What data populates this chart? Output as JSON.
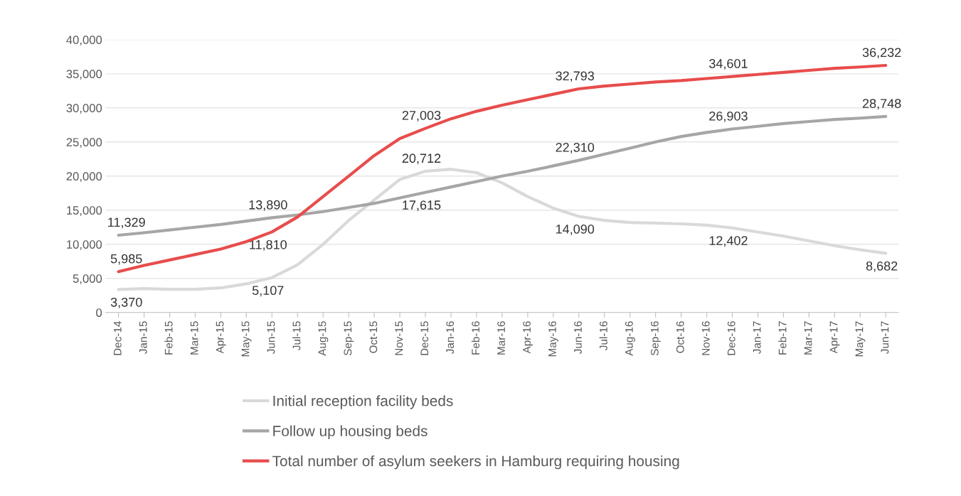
{
  "chart_data": {
    "type": "line",
    "categories": [
      "Dec-14",
      "Jan-15",
      "Feb-15",
      "Mar-15",
      "Apr-15",
      "May-15",
      "Jun-15",
      "Jul-15",
      "Aug-15",
      "Sep-15",
      "Oct-15",
      "Nov-15",
      "Dec-15",
      "Jan-16",
      "Feb-16",
      "Mar-16",
      "Apr-16",
      "May-16",
      "Jun-16",
      "Jul-16",
      "Aug-16",
      "Sep-16",
      "Oct-16",
      "Nov-16",
      "Dec-16",
      "Jan-17",
      "Feb-17",
      "Mar-17",
      "Apr-17",
      "May-17",
      "Jun-17"
    ],
    "series": [
      {
        "name": "Initial reception facility beds",
        "color": "#d9d9d9",
        "values": [
          3370,
          3500,
          3400,
          3400,
          3600,
          4200,
          5107,
          7000,
          10000,
          13500,
          16500,
          19500,
          20712,
          21000,
          20500,
          19000,
          17000,
          15300,
          14090,
          13500,
          13200,
          13100,
          13000,
          12800,
          12402,
          11800,
          11200,
          10500,
          9800,
          9200,
          8682
        ],
        "value_labels": [
          "3,370",
          null,
          null,
          null,
          null,
          null,
          "5,107",
          null,
          null,
          null,
          null,
          null,
          "20,712",
          null,
          null,
          null,
          null,
          null,
          "14,090",
          null,
          null,
          null,
          null,
          null,
          "12,402",
          null,
          null,
          null,
          null,
          null,
          "8,682"
        ]
      },
      {
        "name": "Follow up housing beds",
        "color": "#a6a6a6",
        "values": [
          11329,
          11700,
          12100,
          12500,
          12900,
          13400,
          13890,
          14300,
          14800,
          15400,
          16000,
          16800,
          17615,
          18400,
          19200,
          20000,
          20700,
          21500,
          22310,
          23200,
          24100,
          25000,
          25800,
          26400,
          26903,
          27300,
          27700,
          28000,
          28300,
          28500,
          28748
        ],
        "value_labels": [
          "11,329",
          null,
          null,
          null,
          null,
          null,
          "13,890",
          null,
          null,
          null,
          null,
          null,
          "17,615",
          null,
          null,
          null,
          null,
          null,
          "22,310",
          null,
          null,
          null,
          null,
          null,
          "26,903",
          null,
          null,
          null,
          null,
          null,
          "28,748"
        ]
      },
      {
        "name": "Total number of asylum seekers in Hamburg requiring housing",
        "color": "#e84c4c",
        "values": [
          5985,
          6900,
          7700,
          8500,
          9300,
          10400,
          11810,
          14000,
          17000,
          20000,
          23000,
          25500,
          27003,
          28400,
          29500,
          30400,
          31200,
          32000,
          32793,
          33200,
          33500,
          33800,
          34000,
          34300,
          34601,
          34900,
          35200,
          35500,
          35800,
          36000,
          36232
        ],
        "value_labels": [
          "5,985",
          null,
          null,
          null,
          null,
          null,
          "11,810",
          null,
          null,
          null,
          null,
          null,
          "27,003",
          null,
          null,
          null,
          null,
          null,
          "32,793",
          null,
          null,
          null,
          null,
          null,
          "34,601",
          null,
          null,
          null,
          null,
          null,
          "36,232"
        ]
      }
    ],
    "ylim": [
      0,
      40000
    ],
    "yticks": [
      {
        "value": 0,
        "label": "0"
      },
      {
        "value": 5000,
        "label": "5,000"
      },
      {
        "value": 10000,
        "label": "10,000"
      },
      {
        "value": 15000,
        "label": "15,000"
      },
      {
        "value": 20000,
        "label": "20,000"
      },
      {
        "value": 25000,
        "label": "25,000"
      },
      {
        "value": 30000,
        "label": "30,000"
      },
      {
        "value": 35000,
        "label": "35,000"
      },
      {
        "value": 40000,
        "label": "40,000"
      }
    ],
    "grid": "y",
    "legend": "bottom",
    "marker": "none",
    "line_style": "solid"
  }
}
